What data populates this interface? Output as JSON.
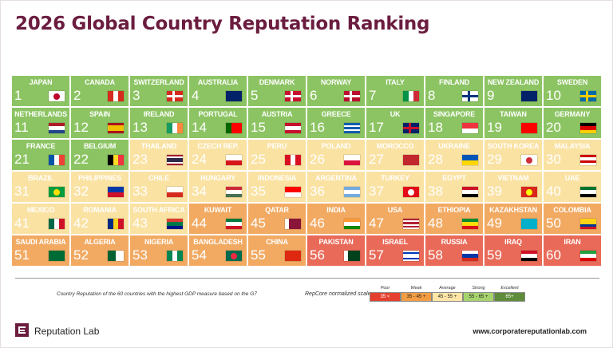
{
  "header": {
    "title": "2026 Global Country Reputation Ranking"
  },
  "grid": {
    "cells": [
      {
        "rank": 1,
        "name": "JAPAN",
        "color": "#8cc463"
      },
      {
        "rank": 2,
        "name": "CANADA",
        "color": "#8cc463"
      },
      {
        "rank": 3,
        "name": "SWITZERLAND",
        "color": "#8cc463"
      },
      {
        "rank": 4,
        "name": "AUSTRALIA",
        "color": "#8cc463"
      },
      {
        "rank": 5,
        "name": "DENMARK",
        "color": "#8cc463"
      },
      {
        "rank": 6,
        "name": "NORWAY",
        "color": "#8cc463"
      },
      {
        "rank": 7,
        "name": "ITALY",
        "color": "#8cc463"
      },
      {
        "rank": 8,
        "name": "FINLAND",
        "color": "#8cc463"
      },
      {
        "rank": 9,
        "name": "NEW ZEALAND",
        "color": "#8cc463"
      },
      {
        "rank": 10,
        "name": "SWEDEN",
        "color": "#8cc463"
      },
      {
        "rank": 11,
        "name": "NETHERLANDS",
        "color": "#8cc463"
      },
      {
        "rank": 12,
        "name": "SPAIN",
        "color": "#8cc463"
      },
      {
        "rank": 13,
        "name": "IRELAND",
        "color": "#8cc463"
      },
      {
        "rank": 14,
        "name": "PORTUGAL",
        "color": "#8cc463"
      },
      {
        "rank": 15,
        "name": "AUSTRIA",
        "color": "#8cc463"
      },
      {
        "rank": 16,
        "name": "GREECE",
        "color": "#8cc463"
      },
      {
        "rank": 17,
        "name": "UK",
        "color": "#8cc463"
      },
      {
        "rank": 18,
        "name": "SINGAPORE",
        "color": "#8cc463"
      },
      {
        "rank": 19,
        "name": "TAIWAN",
        "color": "#8cc463"
      },
      {
        "rank": 20,
        "name": "GERMANY",
        "color": "#8cc463"
      },
      {
        "rank": 21,
        "name": "FRANCE",
        "color": "#8cc463"
      },
      {
        "rank": 22,
        "name": "BELGIUM",
        "color": "#8cc463"
      },
      {
        "rank": 23,
        "name": "THAILAND",
        "color": "#fae2a3"
      },
      {
        "rank": 24,
        "name": "CZECH REP.",
        "color": "#fae2a3"
      },
      {
        "rank": 25,
        "name": "PERU",
        "color": "#fae2a3"
      },
      {
        "rank": 26,
        "name": "POLAND",
        "color": "#fae2a3"
      },
      {
        "rank": 27,
        "name": "MOROCCO",
        "color": "#fae2a3"
      },
      {
        "rank": 28,
        "name": "UKRAINE",
        "color": "#fae2a3"
      },
      {
        "rank": 29,
        "name": "SOUTH KOREA",
        "color": "#fae2a3"
      },
      {
        "rank": 30,
        "name": "MALAYSIA",
        "color": "#fae2a3"
      },
      {
        "rank": 31,
        "name": "BRAZIL",
        "color": "#fae2a3"
      },
      {
        "rank": 32,
        "name": "PHILIPPINES",
        "color": "#fae2a3"
      },
      {
        "rank": 33,
        "name": "CHILE",
        "color": "#fae2a3"
      },
      {
        "rank": 34,
        "name": "HUNGARY",
        "color": "#fae2a3"
      },
      {
        "rank": 35,
        "name": "INDONESIA",
        "color": "#fae2a3"
      },
      {
        "rank": 36,
        "name": "ARGENTINA",
        "color": "#fae2a3"
      },
      {
        "rank": 37,
        "name": "TURKEY",
        "color": "#fae2a3"
      },
      {
        "rank": 38,
        "name": "EGYPT",
        "color": "#fae2a3"
      },
      {
        "rank": 39,
        "name": "VIETNAM",
        "color": "#fae2a3"
      },
      {
        "rank": 40,
        "name": "UAE",
        "color": "#fae2a3"
      },
      {
        "rank": 41,
        "name": "MEXICO",
        "color": "#fae2a3"
      },
      {
        "rank": 42,
        "name": "ROMANIA",
        "color": "#fae2a3"
      },
      {
        "rank": 43,
        "name": "SOUTH AFRICA",
        "color": "#fae2a3"
      },
      {
        "rank": 44,
        "name": "KUWAIT",
        "color": "#f2aa63"
      },
      {
        "rank": 45,
        "name": "QATAR",
        "color": "#f2aa63"
      },
      {
        "rank": 46,
        "name": "INDIA",
        "color": "#f2aa63"
      },
      {
        "rank": 47,
        "name": "USA",
        "color": "#f2aa63"
      },
      {
        "rank": 48,
        "name": "ETHIOPIA",
        "color": "#f2aa63"
      },
      {
        "rank": 49,
        "name": "KAZAKHSTAN",
        "color": "#f2aa63"
      },
      {
        "rank": 50,
        "name": "COLOMBIA",
        "color": "#f2aa63"
      },
      {
        "rank": 51,
        "name": "SAUDI ARABIA",
        "color": "#f2aa63"
      },
      {
        "rank": 52,
        "name": "ALGERIA",
        "color": "#f2aa63"
      },
      {
        "rank": 53,
        "name": "NIGERIA",
        "color": "#f2aa63"
      },
      {
        "rank": 54,
        "name": "BANGLADESH",
        "color": "#f2aa63"
      },
      {
        "rank": 55,
        "name": "CHINA",
        "color": "#f2aa63"
      },
      {
        "rank": 56,
        "name": "PAKISTAN",
        "color": "#e96a58"
      },
      {
        "rank": 57,
        "name": "ISRAEL",
        "color": "#e96a58"
      },
      {
        "rank": 58,
        "name": "RUSSIA",
        "color": "#e96a58"
      },
      {
        "rank": 59,
        "name": "IRAQ",
        "color": "#e96a58"
      },
      {
        "rank": 60,
        "name": "IRAN",
        "color": "#e96a58"
      }
    ]
  },
  "footer_note": "Country Reputation of the 60 countries with the highest GDP measure based on the G7",
  "scale": {
    "title": "RepCore normalized scale",
    "items": [
      {
        "label": "Poor",
        "range": "35 <",
        "color": "#e5402f"
      },
      {
        "label": "Weak",
        "range": "35 - 45 +",
        "color": "#f39d43"
      },
      {
        "label": "Average",
        "range": "45 - 55 +",
        "color": "#fde6a6"
      },
      {
        "label": "Strong",
        "range": "55 - 65 +",
        "color": "#a6d46c"
      },
      {
        "label": "Excellent",
        "range": "65+",
        "color": "#5e8c3a"
      }
    ]
  },
  "brand": {
    "name": "Reputation Lab",
    "url": "www.corporatereputationlab.com"
  }
}
